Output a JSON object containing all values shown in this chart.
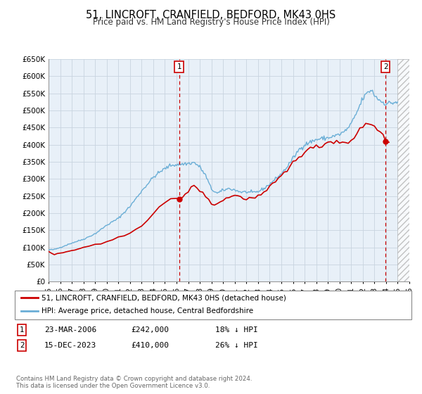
{
  "title": "51, LINCROFT, CRANFIELD, BEDFORD, MK43 0HS",
  "subtitle": "Price paid vs. HM Land Registry's House Price Index (HPI)",
  "title_fontsize": 10.5,
  "subtitle_fontsize": 8.5,
  "background_color": "#ffffff",
  "plot_bg_color": "#e8f0f8",
  "grid_color": "#c8d4e0",
  "xlim": [
    1995,
    2026
  ],
  "ylim": [
    0,
    650000
  ],
  "yticks": [
    0,
    50000,
    100000,
    150000,
    200000,
    250000,
    300000,
    350000,
    400000,
    450000,
    500000,
    550000,
    600000,
    650000
  ],
  "ytick_labels": [
    "£0",
    "£50K",
    "£100K",
    "£150K",
    "£200K",
    "£250K",
    "£300K",
    "£350K",
    "£400K",
    "£450K",
    "£500K",
    "£550K",
    "£600K",
    "£650K"
  ],
  "hpi_color": "#6aaed6",
  "price_color": "#cc0000",
  "marker_color": "#cc0000",
  "vline1_x": 2006.22,
  "vline2_x": 2023.96,
  "vline_color": "#cc0000",
  "marker1_x": 2006.22,
  "marker1_y": 242000,
  "marker2_x": 2023.96,
  "marker2_y": 410000,
  "legend_label_price": "51, LINCROFT, CRANFIELD, BEDFORD, MK43 0HS (detached house)",
  "legend_label_hpi": "HPI: Average price, detached house, Central Bedfordshire",
  "table_row1": [
    "1",
    "23-MAR-2006",
    "£242,000",
    "18% ↓ HPI"
  ],
  "table_row2": [
    "2",
    "15-DEC-2023",
    "£410,000",
    "26% ↓ HPI"
  ],
  "footnote": "Contains HM Land Registry data © Crown copyright and database right 2024.\nThis data is licensed under the Open Government Licence v3.0.",
  "hatch_start": 2025.0,
  "hatch_end": 2026.0
}
